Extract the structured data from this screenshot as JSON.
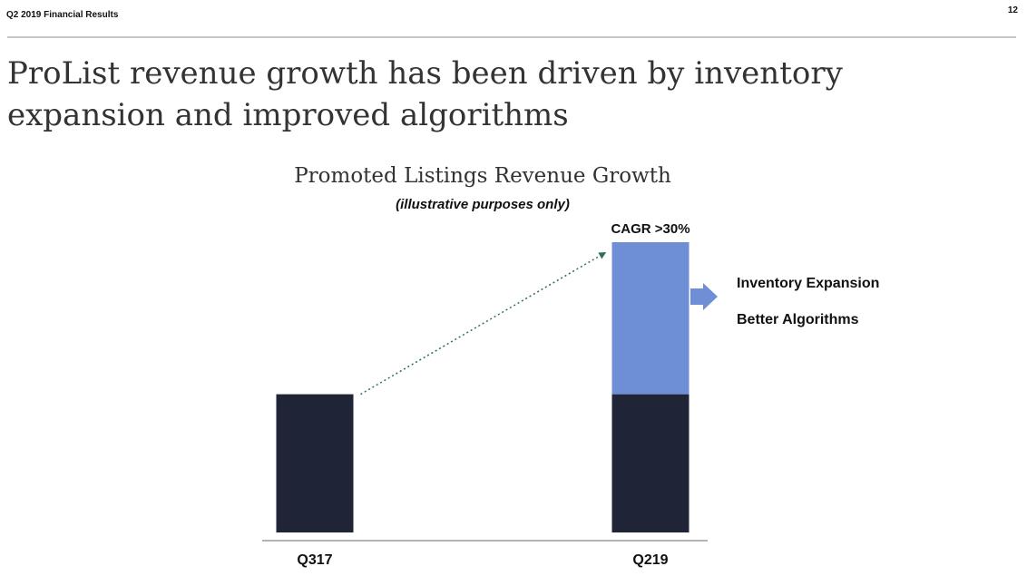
{
  "header": {
    "section_label": "Q2  2019 Financial Results",
    "page_number": "12"
  },
  "slide": {
    "title": "ProList revenue growth has been driven by inventory expansion and improved algorithms"
  },
  "chart_data": {
    "type": "bar",
    "title": "Promoted Listings Revenue Growth",
    "subtitle": "(illustrative purposes only)",
    "categories": [
      "Q317",
      "Q219"
    ],
    "series": [
      {
        "values": [
          1,
          1
        ],
        "color": "#1f2536"
      },
      {
        "values": [
          0,
          1.1
        ],
        "color": "#6e8fd6"
      }
    ],
    "ylim": [
      0,
      2.1
    ],
    "annotations": {
      "cagr": "CAGR >30%",
      "drivers": [
        "Inventory Expansion",
        "Better Algorithms"
      ]
    },
    "grid": false,
    "colors": {
      "arrow": "#6e8fd6",
      "trend_line": "#2f6e5e",
      "axis": "#9a9a9a"
    }
  }
}
